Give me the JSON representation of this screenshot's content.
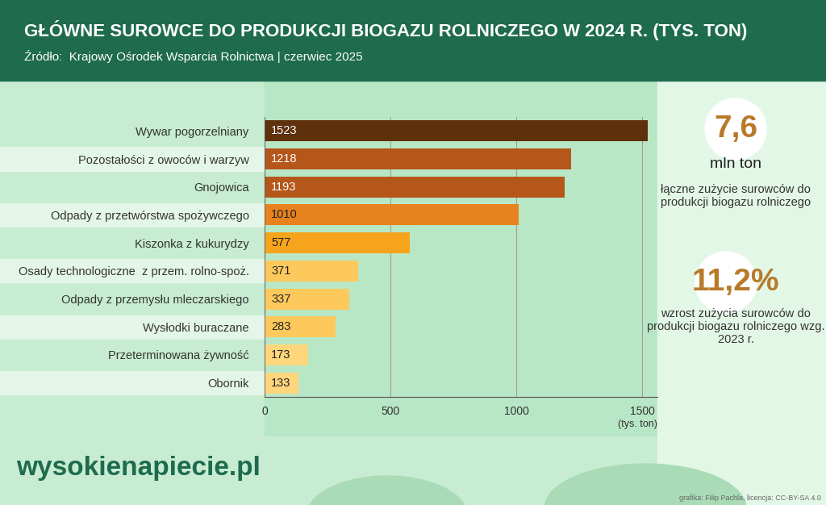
{
  "chart_data": {
    "type": "bar",
    "orientation": "horizontal",
    "title": "GŁÓWNE SUROWCE DO PRODUKCJI BIOGAZU ROLNICZEGO W 2024 R. (TYS. TON)",
    "subtitle": "Źródło:  Krajowy Ośrodek Wsparcia Rolnictwa | czerwiec 2025",
    "x_label": "(tys. ton)",
    "categories": [
      "Wywar pogorzelniany",
      "Pozostałości z owoców i warzyw",
      "Gnojowica",
      "Odpady z przetwórstwa spożywczego",
      "Kiszonka z kukurydzy",
      "Osady technologiczne  z przem. rolno-spoż.",
      "Odpady z przemysłu mleczarskiego",
      "Wysłodki buraczane",
      "Przeterminowana żywność",
      "Obornik"
    ],
    "values": [
      1523,
      1218,
      1193,
      1010,
      577,
      371,
      337,
      283,
      173,
      133
    ],
    "colors": [
      "#5e300b",
      "#b5561b",
      "#b5561b",
      "#e8821e",
      "#f7a41d",
      "#fec95c",
      "#fec95c",
      "#fec95c",
      "#ffd67c",
      "#ffd67c"
    ],
    "xlim": [
      0,
      1560
    ],
    "xticks": [
      0,
      500,
      1000,
      1500
    ],
    "grid": true,
    "data_labels": true,
    "annotations": [
      "7,6",
      "mln ton",
      "łączne zużycie surowców do produkcji biogazu rolniczego",
      "11,2%",
      "wzrost zużycia surowców do produkcji biogazu rolniczego wzg. 2023 r.",
      "wysokienapiecie.pl",
      "grafika: Filip Pachla, licencja: CC-BY-SA 4.0"
    ]
  }
}
